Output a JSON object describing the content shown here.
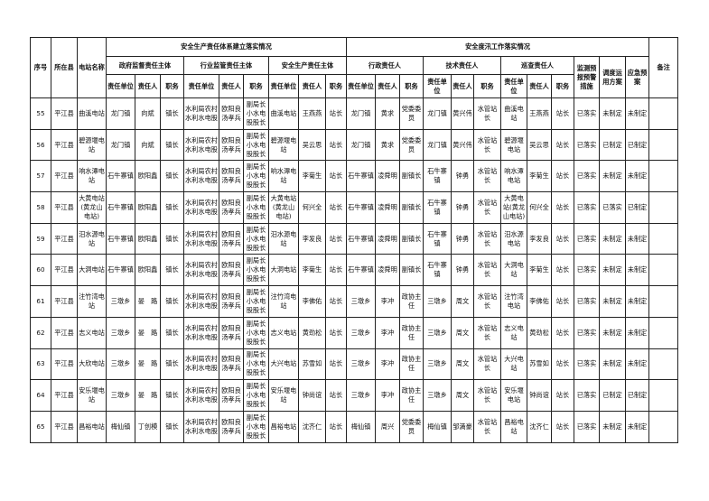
{
  "headers": {
    "seq": "序号",
    "county": "所在县",
    "station": "电站名称",
    "group_safety_system": "安全生产责任体系建立落实情况",
    "group_flood": "安全度汛工作落实情况",
    "remark": "备注",
    "gov": "政府监督责任主体",
    "industry": "行业监管责任主体",
    "producer": "安全生产责任主体",
    "admin": "行政责任人",
    "tech": "技术责任人",
    "patrol": "巡查责任人",
    "monitor": "监测预报预警措施",
    "dispatch": "调度运用方案",
    "emergency": "应急预案",
    "unit": "责任单位",
    "person": "责任人",
    "post": "职务"
  },
  "rows": [
    [
      "55",
      "平江县",
      "曲溪电站",
      "龙门镇",
      "向斌",
      "镇长",
      "水利局农村水利水电股",
      "欧阳良汤孝兵",
      "副局长小水电股股长",
      "曲溪电站",
      "王燕燕",
      "站长",
      "龙门镇",
      "黄求",
      "党委委员",
      "龙门镇",
      "黄兴伟",
      "水管站长",
      "曲溪电站",
      "王燕燕",
      "站长",
      "已落实",
      "未制定",
      "未制定",
      ""
    ],
    [
      "56",
      "平江县",
      "碧源堰电站",
      "龙门镇",
      "向斌",
      "镇长",
      "水利局农村水利水电股",
      "欧阳良汤孝兵",
      "副局长小水电股股长",
      "碧源堰电站",
      "吴云思",
      "站长",
      "龙门镇",
      "黄求",
      "党委委员",
      "龙门镇",
      "黄兴伟",
      "水管站长",
      "碧源堰电站",
      "吴云思",
      "站长",
      "已落实",
      "已制定",
      "已制定",
      ""
    ],
    [
      "57",
      "平江县",
      "响水潭电站",
      "石牛寨镇",
      "欧阳鑫",
      "镇长",
      "水利局农村水利水电股",
      "欧阳良汤孝兵",
      "副局长小水电股股长",
      "响水潭电站",
      "李菊生",
      "站长",
      "石牛寨镇",
      "凌舜明",
      "副镇长",
      "石牛寨镇",
      "钟勇",
      "水管站长",
      "响水潭电站",
      "李菊生",
      "站长",
      "已落实",
      "未制定",
      "未制定",
      ""
    ],
    [
      "58",
      "平江县",
      "大黄电站(黄龙山电站)",
      "石牛寨镇",
      "欧阳鑫",
      "镇长",
      "水利局农村水利水电股",
      "欧阳良汤孝兵",
      "副局长小水电股股长",
      "大黄电站(黄龙山电站)",
      "何兴全",
      "站长",
      "石牛寨镇",
      "凌舜明",
      "副镇长",
      "石牛寨镇",
      "钟勇",
      "水管站长",
      "大黄电站(黄龙山电站)",
      "何兴全",
      "站长",
      "已落实",
      "已落实",
      "已制定",
      ""
    ],
    [
      "59",
      "平江县",
      "汨水源电站",
      "石牛寨镇",
      "欧阳鑫",
      "镇长",
      "水利局农村水利水电股",
      "欧阳良汤孝兵",
      "副局长小水电股股长",
      "汨水源电站",
      "李发良",
      "站长",
      "石牛寨镇",
      "凌舜明",
      "副镇长",
      "石牛寨镇",
      "钟勇",
      "水管站长",
      "汨水源电站",
      "李发良",
      "站长",
      "已落实",
      "未制定",
      "未制定",
      ""
    ],
    [
      "60",
      "平江县",
      "大洞电站",
      "石牛寨镇",
      "欧阳鑫",
      "镇长",
      "水利局农村水利水电股",
      "欧阳良汤孝兵",
      "副局长小水电股股长",
      "大洞电站",
      "李菊生",
      "站长",
      "石牛寨镇",
      "凌舜明",
      "副镇长",
      "石牛寨镇",
      "钟勇",
      "水管站长",
      "大洞电站",
      "李菊生",
      "站长",
      "已落实",
      "未制定",
      "未制定",
      ""
    ],
    [
      "61",
      "平江县",
      "注竹湾电站",
      "三墩乡",
      "晏　路",
      "镇长",
      "水利局农村水利水电股",
      "欧阳良汤孝兵",
      "副局长小水电股股长",
      "注竹湾电站",
      "李佛佑",
      "站长",
      "三墩乡",
      "李冲",
      "政协主任",
      "三墩乡",
      "周文",
      "水管站长",
      "注竹湾电站",
      "李佛佑",
      "站长",
      "已落实",
      "未制定",
      "未制定",
      ""
    ],
    [
      "62",
      "平江县",
      "志义电站",
      "三墩乡",
      "晏　路",
      "镇长",
      "水利局农村水利水电股",
      "欧阳良汤孝兵",
      "副局长小水电股股长",
      "志义电站",
      "黄劲松",
      "站长",
      "三墩乡",
      "李冲",
      "政协主任",
      "三墩乡",
      "周文",
      "水管站长",
      "志义电站",
      "黄劲松",
      "站长",
      "已落实",
      "未制定",
      "未制定",
      ""
    ],
    [
      "63",
      "平江县",
      "大欣电站",
      "三墩乡",
      "晏　路",
      "镇长",
      "水利局农村水利水电股",
      "欧阳良汤孝兵",
      "副局长小水电股股长",
      "大兴电站",
      "苏雪如",
      "站长",
      "三墩乡",
      "李冲",
      "政协主任",
      "三墩乡",
      "周文",
      "水管站长",
      "大兴电站",
      "苏雪如",
      "站长",
      "已落实",
      "未制定",
      "未制定",
      ""
    ],
    [
      "64",
      "平江县",
      "安乐堰电站",
      "三墩乡",
      "晏　路",
      "镇长",
      "水利局农村水利水电股",
      "欧阳良汤孝兵",
      "副局长小水电股股长",
      "安乐堰电站",
      "钟尚谊",
      "站长",
      "三墩乡",
      "李冲",
      "政协主任",
      "三墩乡",
      "周文",
      "水管站长",
      "安乐堰电站",
      "钟尚谊",
      "站长",
      "已落实",
      "已制定",
      "已制定",
      ""
    ],
    [
      "65",
      "平江县",
      "昌裕电站",
      "梅仙镇",
      "丁创模",
      "镇长",
      "水利局农村水利水电股",
      "欧阳良汤孝兵",
      "副局长小水电股股长",
      "昌裕电站",
      "沈齐仁",
      "站长",
      "梅仙镇",
      "周兴",
      "党委委员",
      "梅仙镇",
      "邹満豪",
      "水管站长",
      "昌裕电站",
      "沈齐仁",
      "站长",
      "已落实",
      "未制定",
      "未制定",
      ""
    ]
  ]
}
